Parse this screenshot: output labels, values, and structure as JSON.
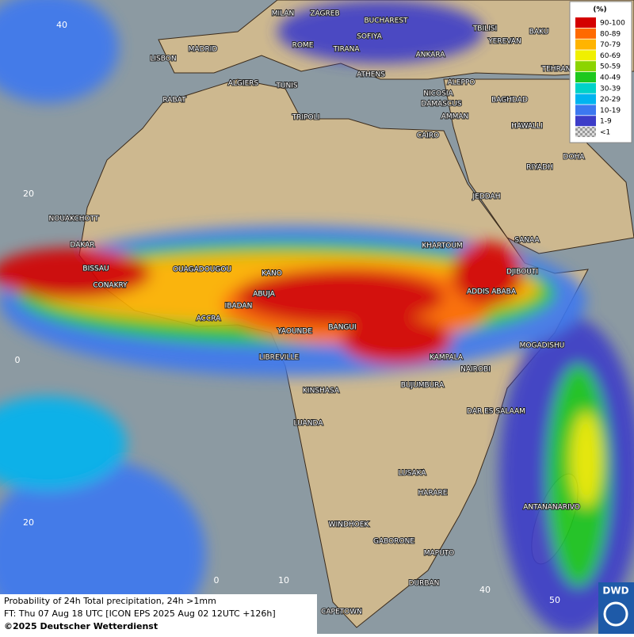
{
  "map": {
    "grid_labels": [
      "40",
      "20",
      "0",
      "20",
      "0",
      "10",
      "40",
      "50"
    ],
    "cities": [
      "MILAN",
      "ZAGREB",
      "BUCHAREST",
      "TBILISI",
      "BAKU",
      "MADRID",
      "ROME",
      "SOFIYA",
      "YEREVAN",
      "LISBON",
      "TIRANA",
      "ANKARA",
      "TEHRAN",
      "ALGIERS",
      "TUNIS",
      "ATHENS",
      "ALEPPO",
      "RABAT",
      "NICOSIA",
      "DAMASCUS",
      "BAGHDAD",
      "TRIPOLI",
      "AMMAN",
      "HAWALLI",
      "CAIRO",
      "DOHA",
      "RIYADH",
      "JEDDAH",
      "NOUAKCHOTT",
      "SANAA",
      "KHARTOUM",
      "DAKAR",
      "BISSAU",
      "DJIBOUTI",
      "OUAGADOUGOU",
      "KANO",
      "CONAKRY",
      "ADDIS ABABA",
      "ABUJA",
      "IBADAN",
      "ACCRA",
      "BANGUI",
      "YAOUNDE",
      "MOGADISHU",
      "LIBREVILLE",
      "KAMPALA",
      "NAIROBI",
      "BUJUMBURA",
      "KINSHASA",
      "DAR ES SALAAM",
      "LUANDA",
      "LUSAKA",
      "HARARE",
      "ANTANANARIVO",
      "WINDHOEK",
      "GABORONE",
      "MAPUTO",
      "DURBAN",
      "CAPETOWN"
    ]
  },
  "legend": {
    "title": "(%)",
    "items": [
      {
        "label": "90-100",
        "color": "#d40000"
      },
      {
        "label": "80-89",
        "color": "#ff6a00"
      },
      {
        "label": "70-79",
        "color": "#ffb400"
      },
      {
        "label": "60-69",
        "color": "#f0f000"
      },
      {
        "label": "50-59",
        "color": "#8cd400"
      },
      {
        "label": "40-49",
        "color": "#1ec81e"
      },
      {
        "label": "30-39",
        "color": "#00d2c8"
      },
      {
        "label": "20-29",
        "color": "#00b4f0"
      },
      {
        "label": "10-19",
        "color": "#3c78f0"
      },
      {
        "label": "1-9",
        "color": "#3c3cc8"
      },
      {
        "label": "<1",
        "color": "#b4b4b4"
      }
    ]
  },
  "footer": {
    "line1": "Probability of 24h Total precipitation, 24h >1mm",
    "line2": "FT: Thu 07 Aug 18 UTC [ICON EPS 2025 Aug 02 12UTC +126h]",
    "line3": "©2025 Deutscher Wetterdienst"
  },
  "logo": "DWD"
}
